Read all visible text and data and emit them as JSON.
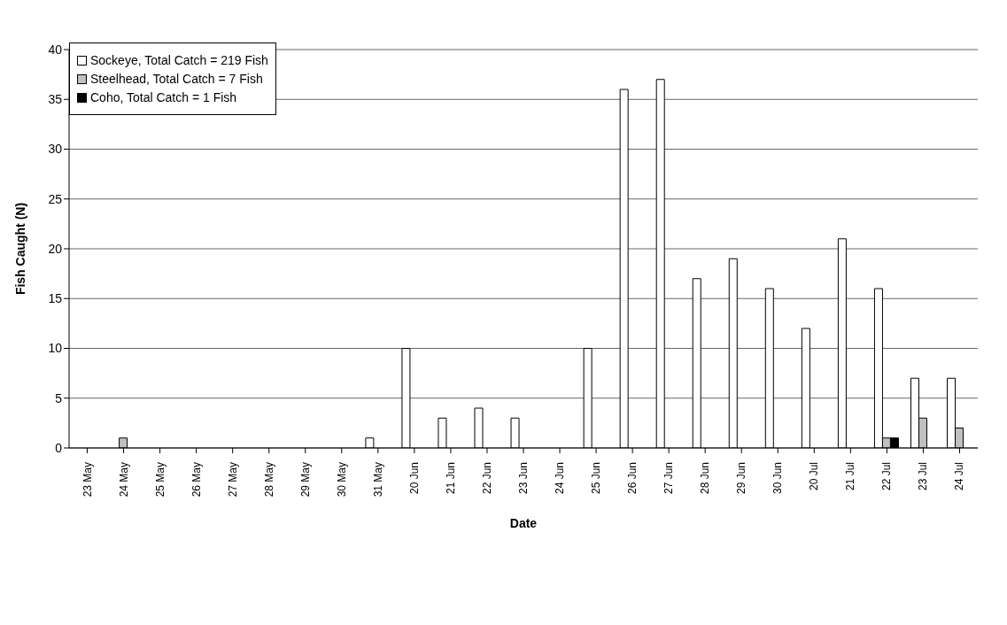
{
  "chart_data": {
    "type": "bar",
    "xlabel": "Date",
    "ylabel": "Fish Caught (N)",
    "categories": [
      "23 May",
      "24 May",
      "25 May",
      "26 May",
      "27 May",
      "28 May",
      "29 May",
      "30 May",
      "31 May",
      "20 Jun",
      "21 Jun",
      "22 Jun",
      "23 Jun",
      "24 Jun",
      "25 Jun",
      "26 Jun",
      "27 Jun",
      "28 Jun",
      "29 Jun",
      "30 Jun",
      "20 Jul",
      "21 Jul",
      "22 Jul",
      "23 Jul",
      "24 Jul"
    ],
    "series": [
      {
        "name": "Sockeye, Total Catch = 219 Fish",
        "color": "#ffffff",
        "values": [
          0,
          0,
          0,
          0,
          0,
          0,
          0,
          0,
          1,
          10,
          3,
          4,
          3,
          0,
          10,
          36,
          37,
          17,
          19,
          16,
          12,
          21,
          16,
          7,
          7
        ]
      },
      {
        "name": "Steelhead, Total Catch = 7 Fish",
        "color": "#c0c0c0",
        "values": [
          0,
          1,
          0,
          0,
          0,
          0,
          0,
          0,
          0,
          0,
          0,
          0,
          0,
          0,
          0,
          0,
          0,
          0,
          0,
          0,
          0,
          0,
          1,
          3,
          2
        ]
      },
      {
        "name": "Coho, Total Catch = 1 Fish",
        "color": "#000000",
        "values": [
          0,
          0,
          0,
          0,
          0,
          0,
          0,
          0,
          0,
          0,
          0,
          0,
          0,
          0,
          0,
          0,
          0,
          0,
          0,
          0,
          0,
          0,
          1,
          0,
          0
        ]
      }
    ],
    "ylim": [
      0,
      40
    ],
    "yticks": [
      0,
      5,
      10,
      15,
      20,
      25,
      30,
      35,
      40
    ],
    "grid": "y",
    "legend": "top left"
  }
}
